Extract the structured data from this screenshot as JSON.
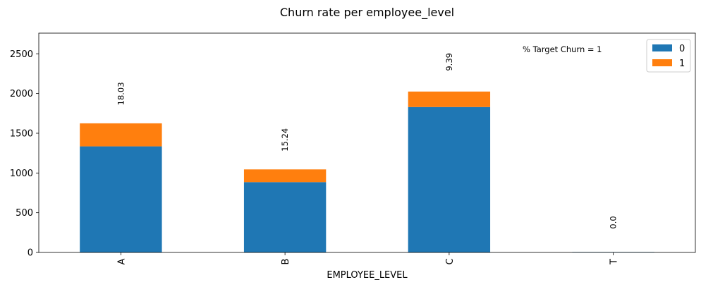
{
  "chart_data": {
    "type": "bar",
    "stacked": true,
    "title": "Churn rate per employee_level",
    "xlabel": "EMPLOYEE_LEVEL",
    "ylabel": "",
    "categories": [
      "A",
      "B",
      "C",
      "T"
    ],
    "series": [
      {
        "name": "0",
        "color": "#1f77b4",
        "values": [
          1335,
          885,
          1830,
          5
        ]
      },
      {
        "name": "1",
        "color": "#ff7f0e",
        "values": [
          290,
          160,
          195,
          0
        ]
      }
    ],
    "ylim": [
      0,
      2760
    ],
    "yticks": [
      0,
      500,
      1000,
      1500,
      2000,
      2500
    ],
    "percent_labels": [
      "18.03",
      "15.24",
      "9.39",
      "0.0"
    ],
    "annotation": "% Target Churn = 1",
    "legend": {
      "placement": "top-right",
      "entries": [
        "0",
        "1"
      ]
    },
    "grid": false
  }
}
